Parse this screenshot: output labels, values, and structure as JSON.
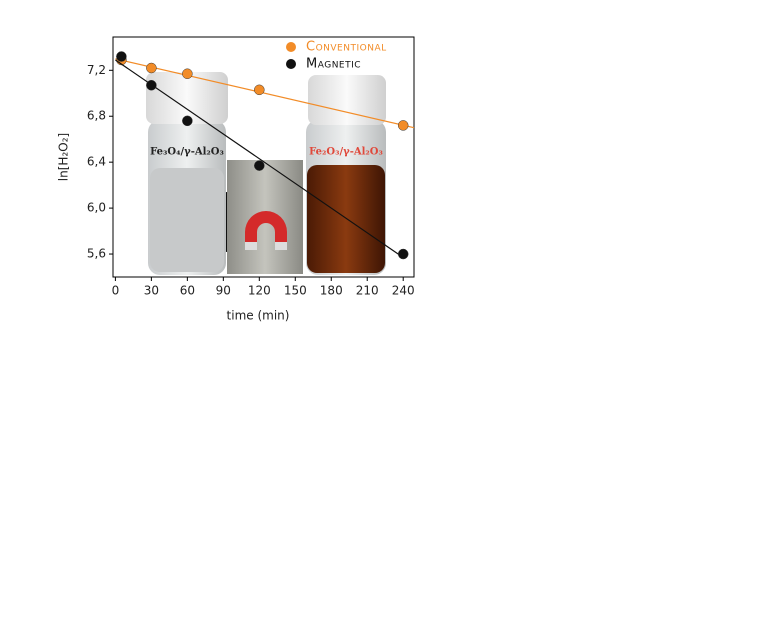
{
  "chart_data": {
    "type": "scatter",
    "x_label": "time (min)",
    "y_label": "ln[H₂O₂]",
    "x": [
      5,
      30,
      60,
      120,
      240
    ],
    "series": [
      {
        "name": "Conventional",
        "color": "#f28c28",
        "values": [
          7.29,
          7.22,
          7.17,
          7.03,
          6.72
        ],
        "trend_x": [
          0,
          249
        ],
        "trend_y": [
          7.3,
          6.7
        ]
      },
      {
        "name": "Magnetic",
        "color": "#111111",
        "values": [
          7.32,
          7.07,
          6.76,
          6.37,
          5.6
        ],
        "trend_x": [
          0,
          240
        ],
        "trend_y": [
          7.29,
          5.57
        ]
      }
    ],
    "annotations": [
      "Fe₃O₄/γ-Al₂O₃",
      "Fe₂O₃/γ-Al₂O₃"
    ],
    "xlim": [
      -2,
      249
    ],
    "xticks": [
      0,
      30,
      60,
      90,
      120,
      150,
      180,
      210,
      240
    ],
    "ylim": [
      5.4,
      7.49
    ],
    "yticks": [
      {
        "value": 5.6,
        "label": "5,6"
      },
      {
        "value": 6.0,
        "label": "6,0"
      },
      {
        "value": 6.4,
        "label": "6,4"
      },
      {
        "value": 6.8,
        "label": "6,8"
      },
      {
        "value": 7.2,
        "label": "7,2"
      }
    ],
    "legend": "top-right"
  }
}
